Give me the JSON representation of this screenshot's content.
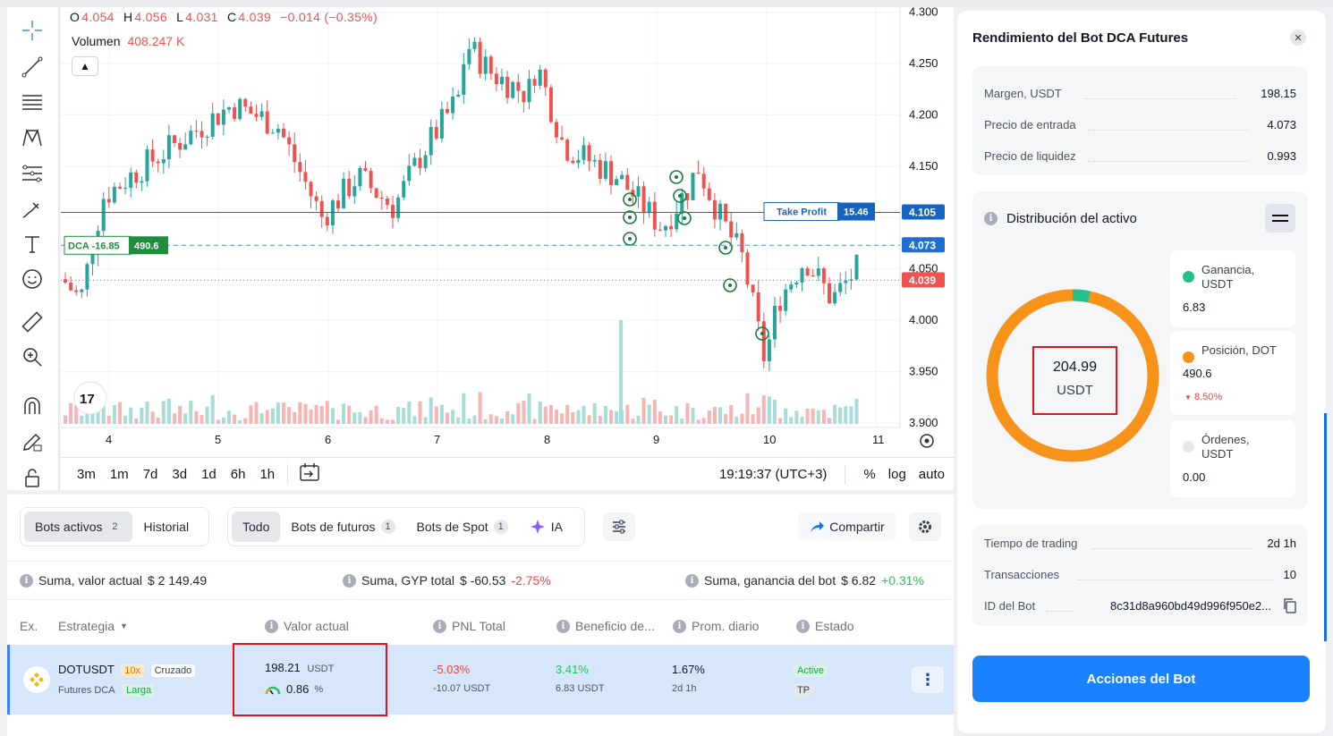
{
  "legend": {
    "open_label": "O",
    "open": "4.054",
    "high_label": "H",
    "high": "4.056",
    "low_label": "L",
    "low": "4.031",
    "close_label": "C",
    "close": "4.039",
    "change": "−0.014 (−0.35%)",
    "volume_label": "Volumen",
    "volume": "408.247 K"
  },
  "chart": {
    "price_ticks": [
      "4.300",
      "4.250",
      "4.200",
      "4.150",
      "4.050",
      "4.000",
      "3.950",
      "3.900"
    ],
    "date_ticks": [
      "4",
      "5",
      "6",
      "7",
      "8",
      "9",
      "10",
      "11"
    ],
    "take_profit_label": "Take Profit",
    "take_profit_value": "15.46",
    "take_profit_price": "4.105",
    "dca_label": "DCA -16.85",
    "dca_value": "490.6",
    "dca_price": "4.073",
    "last_price": "4.039",
    "colors": {
      "up": "#26a69a",
      "down": "#ef5350",
      "tp": "#1565c0",
      "dca": "#1e8e3e"
    }
  },
  "bottom_bar": {
    "timeframes": [
      "3m",
      "1m",
      "7d",
      "3d",
      "1d",
      "6h",
      "1h"
    ],
    "time": "19:19:37 (UTC+3)",
    "percent": "%",
    "log": "log",
    "auto": "auto"
  },
  "bots": {
    "tab_active": "Bots activos",
    "tab_active_count": "2",
    "tab_history": "Historial",
    "filter_all": "Todo",
    "filter_futures": "Bots de futuros",
    "filter_futures_count": "1",
    "filter_spot": "Bots de Spot",
    "filter_spot_count": "1",
    "filter_ai": "IA",
    "share": "Compartir",
    "sum_value_label": "Suma, valor actual",
    "sum_value": "$ 2 149.49",
    "sum_pnl_label": "Suma, GYP total",
    "sum_pnl": "$ -60.53",
    "sum_pnl_pct": "-2.75%",
    "sum_profit_label": "Suma, ganancia del bot",
    "sum_profit": "$ 6.82",
    "sum_profit_pct": "+0.31%",
    "headers": {
      "ex": "Ex.",
      "strategy": "Estrategia",
      "value": "Valor actual",
      "pnl": "PNL Total",
      "profit": "Beneficio de...",
      "daily": "Prom. diario",
      "status": "Estado"
    },
    "row": {
      "pair": "DOTUSDT",
      "leverage": "10x",
      "margin_mode": "Cruzado",
      "type": "Futures DCA",
      "direction": "Larga",
      "value": "198.21",
      "value_unit": "USDT",
      "margin_ratio": "0.86",
      "margin_ratio_unit": "%",
      "pnl_pct": "-5.03%",
      "pnl": "-10.07",
      "pnl_unit": "USDT",
      "profit_pct": "3.41%",
      "profit": "6.83",
      "profit_unit": "USDT",
      "daily": "1.67%",
      "duration": "2d 1h",
      "status": "Active",
      "status_tag": "TP"
    }
  },
  "panel": {
    "title": "Rendimiento del Bot DCA Futures",
    "margin_label": "Margen, USDT",
    "margin": "198.15",
    "entry_label": "Precio de entrada",
    "entry": "4.073",
    "liq_label": "Precio de liquidez",
    "liq": "0.993",
    "dist_title": "Distribución del activo",
    "donut_value": "204.99",
    "donut_unit": "USDT",
    "gain_label": "Ganancia, USDT",
    "gain": "6.83",
    "position_label": "Posición, DOT",
    "position": "490.6",
    "position_change": "8.50%",
    "orders_label": "Órdenes, USDT",
    "orders": "0.00",
    "trading_time_label": "Tiempo de trading",
    "trading_time": "2d 1h",
    "transactions_label": "Transacciones",
    "transactions": "10",
    "bot_id_label": "ID del Bot",
    "bot_id": "8c31d8a960bd49d996f950e2...",
    "actions": "Acciones del Bot",
    "colors": {
      "gain": "#22c08a",
      "position": "#f7931a",
      "orders": "#e5e7eb"
    },
    "gain_share": 0.033
  }
}
